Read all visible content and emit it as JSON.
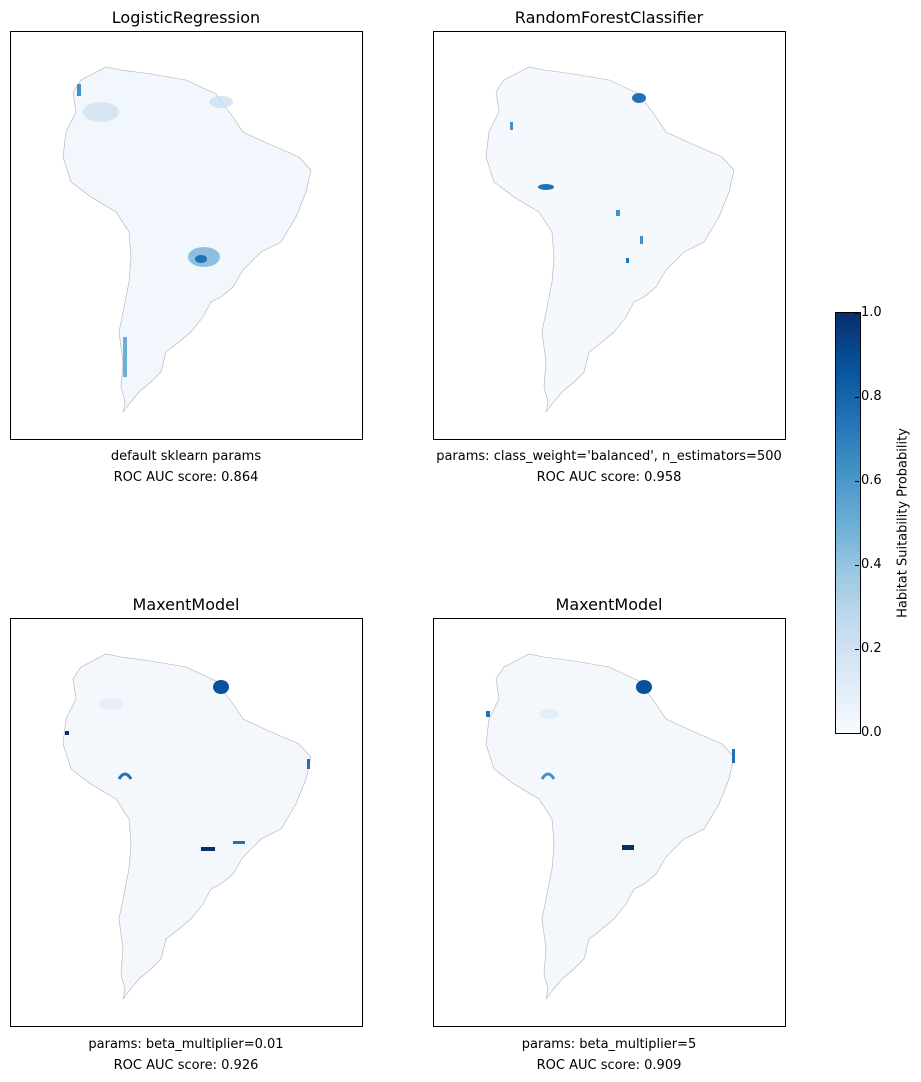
{
  "figure": {
    "panels": [
      {
        "title": "LogisticRegression",
        "params": "default sklearn params",
        "score": "ROC AUC score: 0.864"
      },
      {
        "title": "RandomForestClassifier",
        "params": "params: class_weight='balanced', n_estimators=500",
        "score": "ROC AUC score: 0.958"
      },
      {
        "title": "MaxentModel",
        "params": "params: beta_multiplier=0.01",
        "score": "ROC AUC score: 0.926"
      },
      {
        "title": "MaxentModel",
        "params": "params: beta_multiplier=5",
        "score": "ROC AUC score: 0.909"
      }
    ],
    "colorbar": {
      "label": "Habitat Suitability Probability",
      "ticks": [
        "1.0",
        "0.8",
        "0.6",
        "0.4",
        "0.2",
        "0.0"
      ],
      "colormap": "Blues"
    }
  },
  "chart_data": [
    {
      "type": "heatmap",
      "title": "LogisticRegression",
      "xlabel": "",
      "ylabel": "",
      "value_range": [
        0,
        1
      ],
      "colorbar_label": "Habitat Suitability Probability",
      "region": "South America",
      "roc_auc": 0.864
    },
    {
      "type": "heatmap",
      "title": "RandomForestClassifier",
      "xlabel": "",
      "ylabel": "",
      "value_range": [
        0,
        1
      ],
      "colorbar_label": "Habitat Suitability Probability",
      "region": "South America",
      "roc_auc": 0.958
    },
    {
      "type": "heatmap",
      "title": "MaxentModel",
      "xlabel": "",
      "ylabel": "",
      "value_range": [
        0,
        1
      ],
      "colorbar_label": "Habitat Suitability Probability",
      "region": "South America",
      "roc_auc": 0.926
    },
    {
      "type": "heatmap",
      "title": "MaxentModel",
      "xlabel": "",
      "ylabel": "",
      "value_range": [
        0,
        1
      ],
      "colorbar_label": "Habitat Suitability Probability",
      "region": "South America",
      "roc_auc": 0.909
    }
  ]
}
